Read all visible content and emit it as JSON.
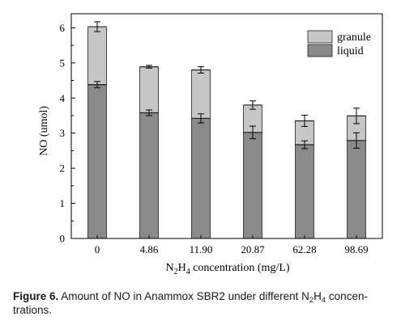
{
  "chart_data": {
    "type": "bar",
    "stacked": true,
    "xlabel": {
      "main": "N",
      "sub1": "2",
      "mid": "H",
      "sub2": "4",
      "rest": " concentration (mg/L)"
    },
    "ylabel": "NO (umol)",
    "ylim": [
      0,
      6.4
    ],
    "yticks": [
      "0",
      "1",
      "2",
      "3",
      "4",
      "5",
      "6"
    ],
    "categories": [
      "0",
      "4.86",
      "11.90",
      "20.87",
      "62.28",
      "98.69"
    ],
    "series": [
      {
        "name": "liquid",
        "color": "#8a8a8a",
        "values": [
          4.38,
          3.58,
          3.42,
          3.02,
          2.67,
          2.79
        ],
        "errors": [
          0.09,
          0.08,
          0.13,
          0.18,
          0.11,
          0.22
        ]
      },
      {
        "name": "granule",
        "color": "#c6c6c6",
        "values": [
          1.65,
          1.31,
          1.38,
          0.78,
          0.68,
          0.7
        ],
        "errors": [
          0.14,
          0.04,
          0.09,
          0.12,
          0.16,
          0.22
        ]
      }
    ],
    "legend": {
      "position": "top-right",
      "order": [
        "granule",
        "liquid"
      ]
    }
  },
  "caption": {
    "label": "Figure 6.",
    "t1": " Amount of NO in Anammox SBR2 under different N",
    "s1": "2",
    "t2": "H",
    "s2": "4",
    "t3": " concen-",
    "line2": "trations."
  }
}
